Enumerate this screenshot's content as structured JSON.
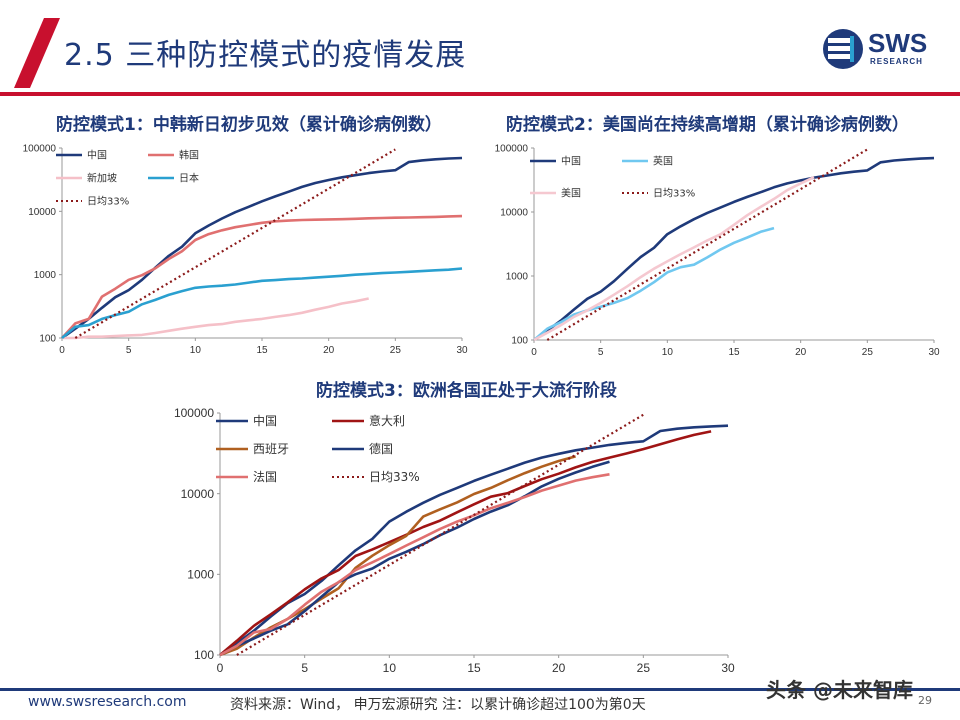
{
  "header": {
    "title": "2.5 三种防控模式的疫情发展",
    "logo_text": "SWS",
    "logo_sub": "RESEARCH"
  },
  "footer": {
    "url": "www.swsresearch.com",
    "source": "资料来源：Wind， 申万宏源研究  注：以累计确诊超过100为第0天",
    "page": "29",
    "watermark": "头条 @未来智库"
  },
  "colors": {
    "brand_blue": "#1f3a7a",
    "brand_red": "#c8102e"
  },
  "chart_data": [
    {
      "type": "line",
      "title": "防控模式1：中韩新日初步见效（累计确诊病例数）",
      "yscale": "log",
      "ylim": [
        100,
        100000
      ],
      "xlim": [
        0,
        30
      ],
      "xticks": [
        0,
        5,
        10,
        15,
        20,
        25,
        30
      ],
      "yticks": [
        100,
        1000,
        10000,
        100000
      ],
      "ytick_labels": [
        "100",
        "1000",
        "10000",
        "100000"
      ],
      "grid": false,
      "legend": "top-left, 2 columns",
      "series": [
        {
          "name": "中国",
          "color": "#1f3a7a",
          "dash": false,
          "x": [
            0,
            1,
            2,
            3,
            4,
            5,
            6,
            7,
            8,
            9,
            10,
            11,
            12,
            13,
            14,
            15,
            16,
            17,
            18,
            19,
            20,
            21,
            22,
            23,
            24,
            25,
            26,
            27,
            28,
            29,
            30
          ],
          "y": [
            100,
            140,
            200,
            300,
            440,
            570,
            830,
            1290,
            1980,
            2760,
            4500,
            5970,
            7710,
            9690,
            11790,
            14380,
            17200,
            20400,
            24300,
            28000,
            31200,
            34500,
            37200,
            40200,
            42600,
            44600,
            59800,
            63800,
            66400,
            68300,
            69500
          ]
        },
        {
          "name": "韩国",
          "color": "#e07070",
          "dash": false,
          "x": [
            0,
            1,
            2,
            3,
            4,
            5,
            6,
            7,
            8,
            9,
            10,
            11,
            12,
            13,
            14,
            15,
            16,
            17,
            18,
            19,
            20,
            21,
            22,
            23,
            24,
            25,
            26,
            27,
            28,
            29,
            30
          ],
          "y": [
            100,
            170,
            200,
            450,
            600,
            830,
            980,
            1260,
            1770,
            2340,
            3530,
            4370,
            5020,
            5620,
            6080,
            6590,
            6950,
            7130,
            7310,
            7380,
            7470,
            7510,
            7630,
            7760,
            7860,
            7940,
            8000,
            8080,
            8160,
            8320,
            8400
          ]
        },
        {
          "name": "新加坡",
          "color": "#f5c0c8",
          "dash": false,
          "x": [
            0,
            1,
            2,
            3,
            4,
            5,
            6,
            7,
            8,
            9,
            10,
            11,
            12,
            13,
            14,
            15,
            16,
            17,
            18,
            19,
            20,
            21,
            22,
            23
          ],
          "y": [
            100,
            100,
            105,
            105,
            107,
            110,
            112,
            120,
            130,
            140,
            150,
            160,
            166,
            180,
            190,
            200,
            215,
            230,
            250,
            280,
            310,
            350,
            380,
            420
          ]
        },
        {
          "name": "日本",
          "color": "#2aa0d0",
          "dash": false,
          "x": [
            0,
            1,
            2,
            3,
            4,
            5,
            6,
            7,
            8,
            9,
            10,
            11,
            12,
            13,
            14,
            15,
            16,
            17,
            18,
            19,
            20,
            21,
            22,
            23,
            24,
            25,
            26,
            27,
            28,
            29,
            30
          ],
          "y": [
            100,
            150,
            160,
            200,
            230,
            260,
            340,
            400,
            480,
            550,
            620,
            650,
            670,
            700,
            750,
            800,
            820,
            850,
            870,
            900,
            930,
            960,
            1000,
            1030,
            1060,
            1080,
            1110,
            1140,
            1170,
            1200,
            1250
          ]
        },
        {
          "name": "日均33%",
          "color": "#8b1a1a",
          "dash": true,
          "x": [
            1,
            25
          ],
          "y": [
            100,
            95000
          ]
        }
      ]
    },
    {
      "type": "line",
      "title": "防控模式2：美国尚在持续高增期（累计确诊病例数）",
      "yscale": "log",
      "ylim": [
        100,
        100000
      ],
      "xlim": [
        0,
        30
      ],
      "xticks": [
        0,
        5,
        10,
        15,
        20,
        25,
        30
      ],
      "yticks": [
        100,
        1000,
        10000,
        100000
      ],
      "ytick_labels": [
        "100",
        "1000",
        "10000",
        "100000"
      ],
      "grid": false,
      "legend": "top-left, 2 columns",
      "series": [
        {
          "name": "中国",
          "color": "#1f3a7a",
          "dash": false,
          "x": [
            0,
            1,
            2,
            3,
            4,
            5,
            6,
            7,
            8,
            9,
            10,
            11,
            12,
            13,
            14,
            15,
            16,
            17,
            18,
            19,
            20,
            21,
            22,
            23,
            24,
            25,
            26,
            27,
            28,
            29,
            30
          ],
          "y": [
            100,
            140,
            200,
            300,
            440,
            570,
            830,
            1290,
            1980,
            2760,
            4500,
            5970,
            7710,
            9690,
            11790,
            14380,
            17200,
            20400,
            24300,
            28000,
            31200,
            34500,
            37200,
            40200,
            42600,
            44600,
            59800,
            63800,
            66400,
            68300,
            69500
          ]
        },
        {
          "name": "英国",
          "color": "#70c8f0",
          "dash": false,
          "x": [
            0,
            1,
            2,
            3,
            4,
            5,
            6,
            7,
            8,
            9,
            10,
            11,
            12,
            13,
            14,
            15,
            16,
            17,
            18
          ],
          "y": [
            100,
            150,
            190,
            250,
            290,
            330,
            380,
            450,
            590,
            800,
            1140,
            1370,
            1500,
            1950,
            2600,
            3300,
            4000,
            4900,
            5600
          ]
        },
        {
          "name": "美国",
          "color": "#f5c8d0",
          "dash": false,
          "x": [
            0,
            1,
            2,
            3,
            4,
            5,
            6,
            7,
            8,
            9,
            10,
            11,
            12,
            13,
            14,
            15,
            16,
            17,
            18,
            19,
            20,
            21
          ],
          "y": [
            100,
            130,
            170,
            230,
            290,
            380,
            510,
            690,
            960,
            1300,
            1690,
            2200,
            2800,
            3600,
            4500,
            6300,
            8900,
            12000,
            16000,
            22000,
            28000,
            35000
          ]
        },
        {
          "name": "日均33%",
          "color": "#8b1a1a",
          "dash": true,
          "x": [
            1,
            25
          ],
          "y": [
            100,
            95000
          ]
        }
      ]
    },
    {
      "type": "line",
      "title": "防控模式3：欧洲各国正处于大流行阶段",
      "yscale": "log",
      "ylim": [
        100,
        100000
      ],
      "xlim": [
        0,
        30
      ],
      "xticks": [
        0,
        5,
        10,
        15,
        20,
        25,
        30
      ],
      "yticks": [
        100,
        1000,
        10000,
        100000
      ],
      "ytick_labels": [
        "100",
        "1000",
        "10000",
        "100000"
      ],
      "grid": false,
      "legend": "top-left, 3 columns",
      "series": [
        {
          "name": "中国",
          "color": "#1f3a7a",
          "dash": false,
          "x": [
            0,
            1,
            2,
            3,
            4,
            5,
            6,
            7,
            8,
            9,
            10,
            11,
            12,
            13,
            14,
            15,
            16,
            17,
            18,
            19,
            20,
            21,
            22,
            23,
            24,
            25,
            26,
            27,
            28,
            29,
            30
          ],
          "y": [
            100,
            140,
            200,
            300,
            440,
            570,
            830,
            1290,
            1980,
            2760,
            4500,
            5970,
            7710,
            9690,
            11790,
            14380,
            17200,
            20400,
            24300,
            28000,
            31200,
            34500,
            37200,
            40200,
            42600,
            44600,
            59800,
            63800,
            66400,
            68300,
            69500
          ]
        },
        {
          "name": "意大利",
          "color": "#a01414",
          "dash": false,
          "x": [
            0,
            1,
            2,
            3,
            4,
            5,
            6,
            7,
            8,
            9,
            10,
            11,
            12,
            13,
            14,
            15,
            16,
            17,
            18,
            19,
            20,
            21,
            22,
            23,
            24,
            25,
            26,
            27,
            28,
            29
          ],
          "y": [
            100,
            150,
            230,
            320,
            450,
            650,
            890,
            1130,
            1690,
            2040,
            2500,
            3090,
            3860,
            4640,
            5880,
            7380,
            9170,
            10150,
            12460,
            15110,
            17660,
            21160,
            24750,
            27980,
            31500,
            35710,
            41040,
            47020,
            53580,
            59140
          ]
        },
        {
          "name": "西班牙",
          "color": "#b06020",
          "dash": false,
          "x": [
            0,
            1,
            2,
            3,
            4,
            5,
            6,
            7,
            8,
            9,
            10,
            11,
            12,
            13,
            14,
            15,
            16,
            17,
            18,
            19,
            20,
            21
          ],
          "y": [
            100,
            120,
            165,
            220,
            280,
            370,
            500,
            670,
            1200,
            1700,
            2300,
            3000,
            5200,
            6400,
            7800,
            9900,
            11800,
            14700,
            18000,
            21600,
            25400,
            29000
          ]
        },
        {
          "name": "德国",
          "color": "#1f3a7a",
          "dash": false,
          "x": [
            0,
            1,
            2,
            3,
            4,
            5,
            6,
            7,
            8,
            9,
            10,
            11,
            12,
            13,
            14,
            15,
            16,
            17,
            18,
            19,
            20,
            21,
            22,
            23
          ],
          "y": [
            100,
            130,
            160,
            200,
            240,
            350,
            530,
            800,
            1000,
            1180,
            1560,
            1900,
            2370,
            3060,
            3800,
            4850,
            6000,
            7200,
            9300,
            12300,
            15300,
            18300,
            21500,
            24800
          ]
        },
        {
          "name": "法国",
          "color": "#e07070",
          "dash": false,
          "x": [
            0,
            1,
            2,
            3,
            4,
            5,
            6,
            7,
            8,
            9,
            10,
            11,
            12,
            13,
            14,
            15,
            16,
            17,
            18,
            19,
            20,
            21,
            22,
            23
          ],
          "y": [
            100,
            130,
            190,
            210,
            280,
            420,
            610,
            800,
            1130,
            1410,
            1780,
            2280,
            2880,
            3660,
            4500,
            5400,
            6600,
            7700,
            9100,
            10900,
            12600,
            14500,
            16000,
            17400
          ]
        },
        {
          "name": "日均33%",
          "color": "#8b1a1a",
          "dash": true,
          "x": [
            1,
            25
          ],
          "y": [
            100,
            95000
          ]
        }
      ]
    }
  ]
}
